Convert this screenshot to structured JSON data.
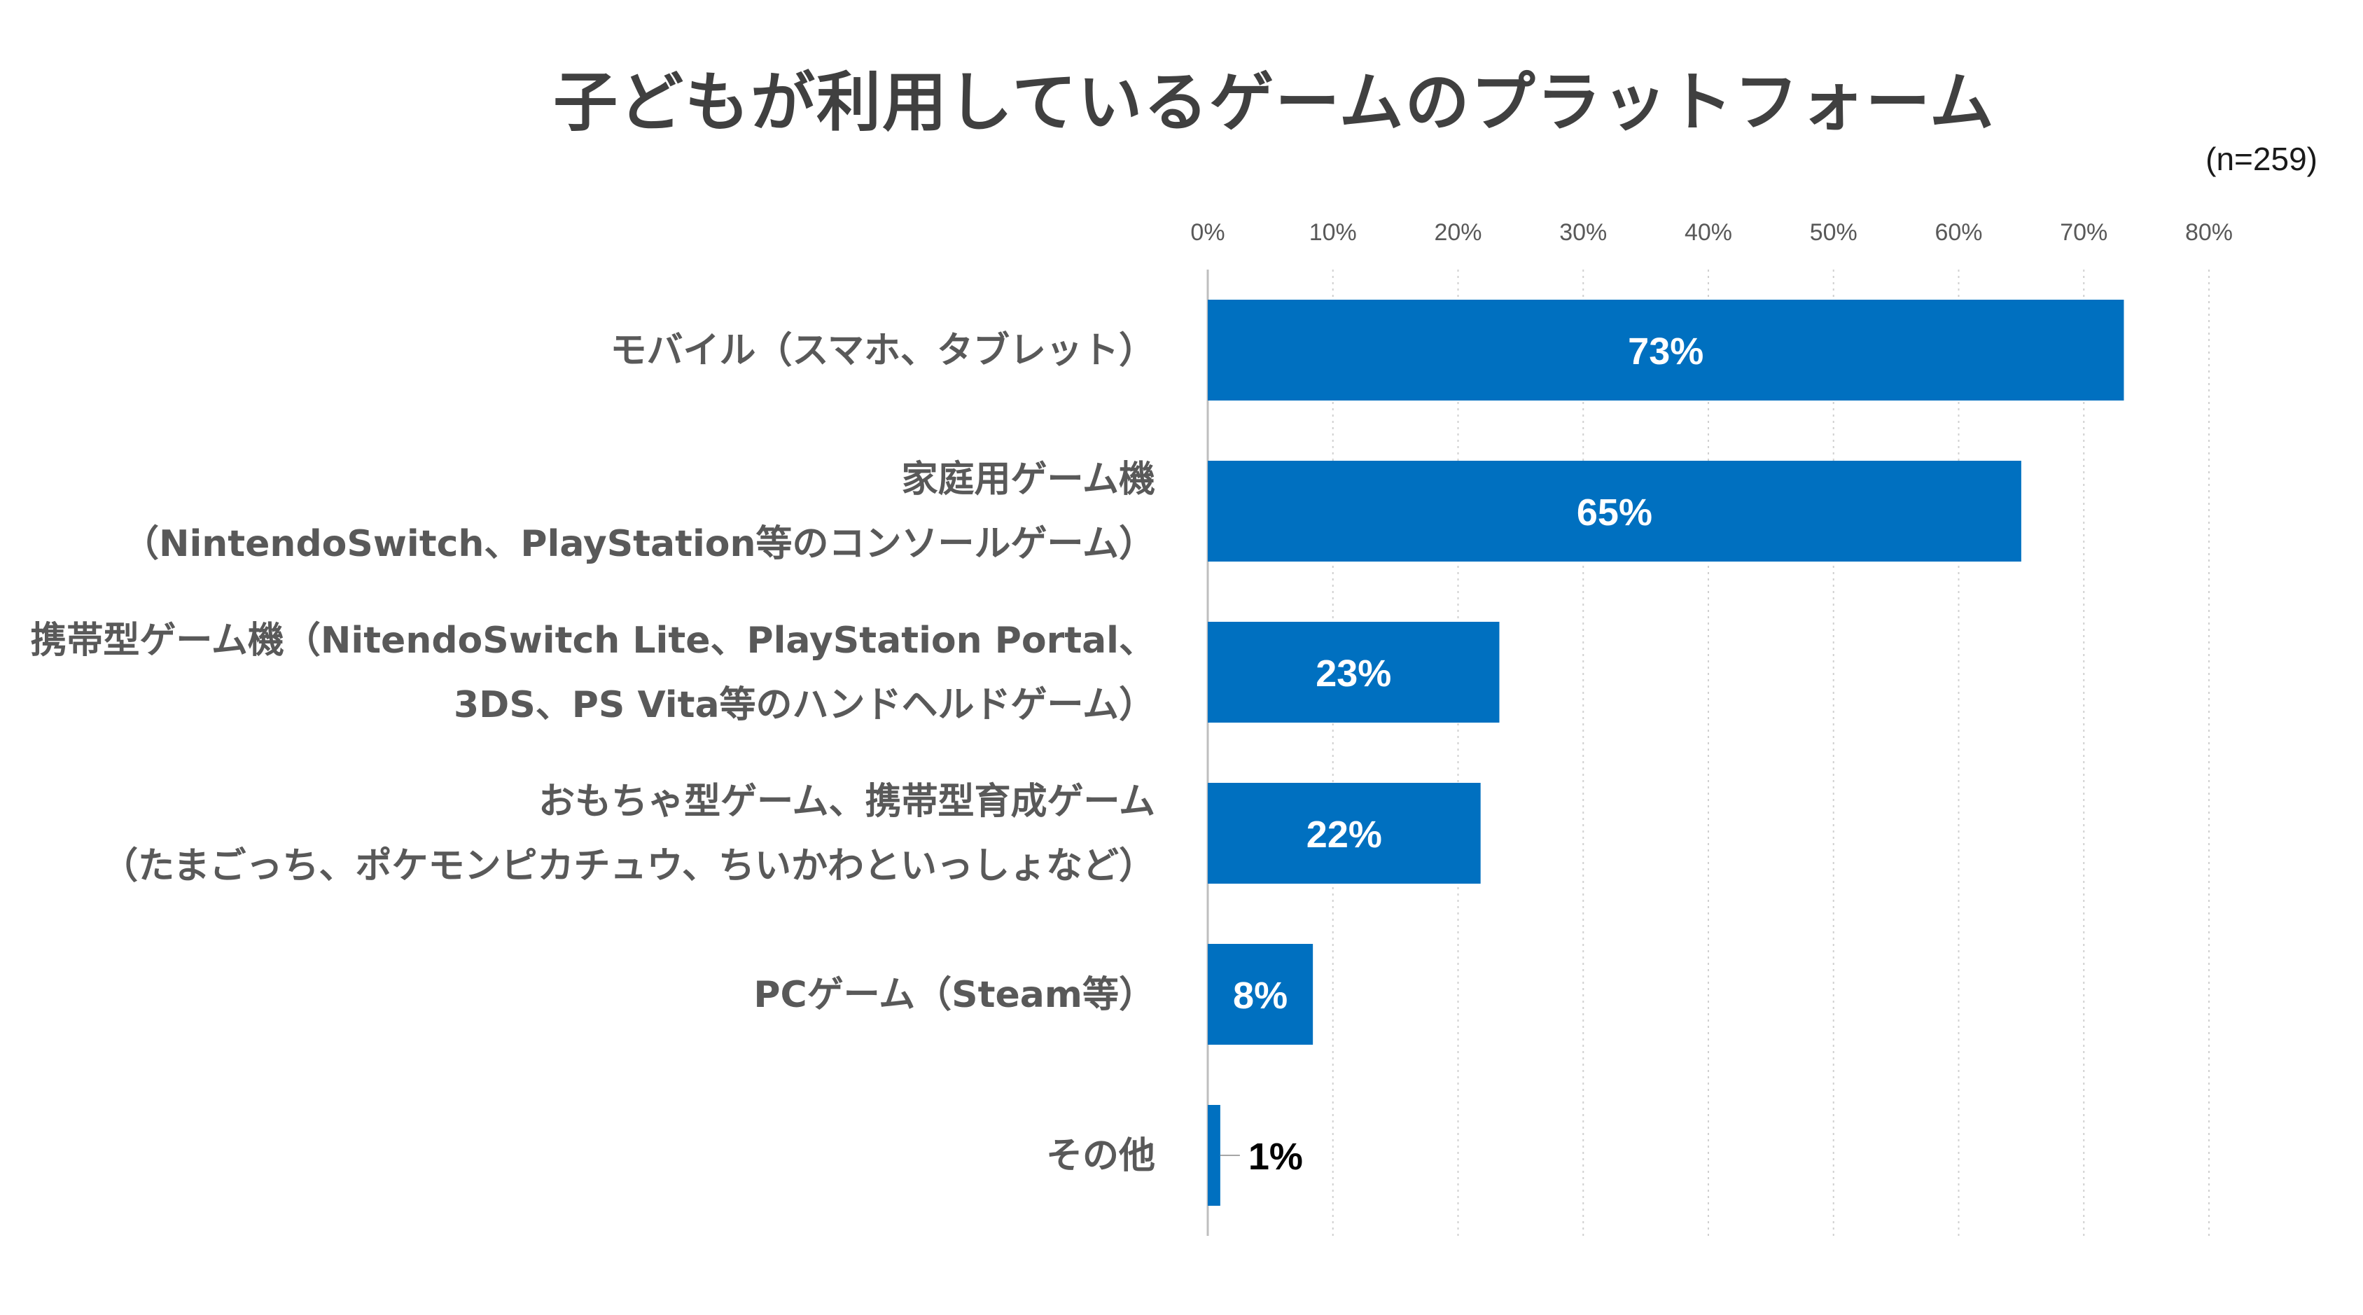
{
  "chart_data": {
    "type": "bar",
    "orientation": "horizontal",
    "title": "子どもが利用しているゲームのプラットフォーム",
    "note": "(n=259)",
    "xlim": [
      0,
      80
    ],
    "x_ticks": [
      "0%",
      "10%",
      "20%",
      "30%",
      "40%",
      "50%",
      "60%",
      "70%",
      "80%"
    ],
    "grid": "vertical dotted",
    "categories": [
      [
        "モバイル（スマホ、タブレット）"
      ],
      [
        "家庭用ゲーム機",
        "（NintendoSwitch、PlayStation等のコンソールゲーム）"
      ],
      [
        "携帯型ゲーム機（NitendoSwitch Lite、PlayStation Portal、",
        "3DS、PS Vita等のハンドヘルドゲーム）"
      ],
      [
        "おもちゃ型ゲーム、携帯型育成ゲーム",
        "（たまごっち、ポケモンピカチュウ、ちいかわといっしょなど）"
      ],
      [
        "PCゲーム（Steam等）"
      ],
      [
        "その他"
      ]
    ],
    "values": [
      73.2,
      65.0,
      23.3,
      21.8,
      8.4,
      1.0
    ],
    "value_labels": [
      "73%",
      "65%",
      "23%",
      "22%",
      "8%",
      "1%"
    ],
    "bar_color": "#0070C0",
    "label_color_inside": "#ffffff",
    "label_color_outside": "#000000"
  }
}
